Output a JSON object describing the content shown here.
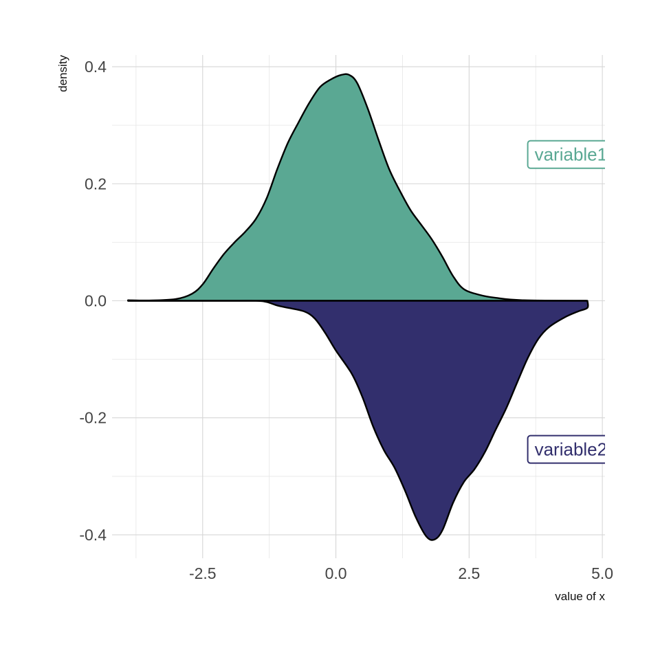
{
  "chart_data": {
    "type": "area",
    "xlabel": "value of x",
    "ylabel": "density",
    "xlim": [
      -4.2,
      5.05
    ],
    "ylim": [
      -0.44,
      0.42
    ],
    "x_ticks": [
      {
        "value": -2.5,
        "label": "-2.5"
      },
      {
        "value": 0.0,
        "label": "0.0"
      },
      {
        "value": 2.5,
        "label": "2.5"
      },
      {
        "value": 5.0,
        "label": "5.0"
      }
    ],
    "y_ticks": [
      {
        "value": 0.4,
        "label": "0.4"
      },
      {
        "value": 0.2,
        "label": "0.2"
      },
      {
        "value": 0.0,
        "label": "0.0"
      },
      {
        "value": -0.2,
        "label": "-0.2"
      },
      {
        "value": -0.4,
        "label": "-0.4"
      }
    ],
    "grid": true,
    "series": [
      {
        "name": "variable1",
        "color": "#5aa893",
        "label_position": {
          "x": 3.6,
          "y": 0.25
        },
        "points": [
          [
            -3.9,
            0.001
          ],
          [
            -3.5,
            0.0005
          ],
          [
            -3.0,
            0.003
          ],
          [
            -2.7,
            0.012
          ],
          [
            -2.5,
            0.028
          ],
          [
            -2.3,
            0.055
          ],
          [
            -2.1,
            0.08
          ],
          [
            -1.9,
            0.1
          ],
          [
            -1.7,
            0.118
          ],
          [
            -1.5,
            0.14
          ],
          [
            -1.3,
            0.175
          ],
          [
            -1.1,
            0.225
          ],
          [
            -0.9,
            0.27
          ],
          [
            -0.7,
            0.305
          ],
          [
            -0.5,
            0.338
          ],
          [
            -0.3,
            0.365
          ],
          [
            -0.1,
            0.378
          ],
          [
            0.1,
            0.386
          ],
          [
            0.25,
            0.386
          ],
          [
            0.4,
            0.372
          ],
          [
            0.6,
            0.328
          ],
          [
            0.8,
            0.275
          ],
          [
            1.0,
            0.225
          ],
          [
            1.2,
            0.188
          ],
          [
            1.4,
            0.155
          ],
          [
            1.6,
            0.13
          ],
          [
            1.8,
            0.105
          ],
          [
            2.0,
            0.075
          ],
          [
            2.2,
            0.042
          ],
          [
            2.4,
            0.02
          ],
          [
            2.7,
            0.01
          ],
          [
            3.0,
            0.005
          ],
          [
            3.5,
            0.001
          ],
          [
            4.7,
            0.0
          ]
        ]
      },
      {
        "name": "variable2",
        "color": "#322f6d",
        "label_position": {
          "x": 3.6,
          "y": -0.254
        },
        "points": [
          [
            -3.9,
            0.0
          ],
          [
            -2.5,
            0.0
          ],
          [
            -2.0,
            0.0
          ],
          [
            -1.5,
            0.0
          ],
          [
            -1.3,
            -0.002
          ],
          [
            -1.1,
            -0.008
          ],
          [
            -0.9,
            -0.012
          ],
          [
            -0.6,
            -0.018
          ],
          [
            -0.4,
            -0.03
          ],
          [
            -0.2,
            -0.055
          ],
          [
            0.0,
            -0.085
          ],
          [
            0.3,
            -0.125
          ],
          [
            0.5,
            -0.165
          ],
          [
            0.7,
            -0.215
          ],
          [
            0.9,
            -0.255
          ],
          [
            1.1,
            -0.285
          ],
          [
            1.3,
            -0.325
          ],
          [
            1.5,
            -0.37
          ],
          [
            1.7,
            -0.403
          ],
          [
            1.85,
            -0.408
          ],
          [
            2.0,
            -0.392
          ],
          [
            2.2,
            -0.345
          ],
          [
            2.4,
            -0.31
          ],
          [
            2.6,
            -0.288
          ],
          [
            2.8,
            -0.258
          ],
          [
            3.0,
            -0.22
          ],
          [
            3.2,
            -0.183
          ],
          [
            3.4,
            -0.14
          ],
          [
            3.6,
            -0.098
          ],
          [
            3.8,
            -0.065
          ],
          [
            4.0,
            -0.045
          ],
          [
            4.3,
            -0.028
          ],
          [
            4.55,
            -0.018
          ],
          [
            4.72,
            -0.012
          ],
          [
            4.72,
            0.0
          ]
        ]
      }
    ]
  }
}
